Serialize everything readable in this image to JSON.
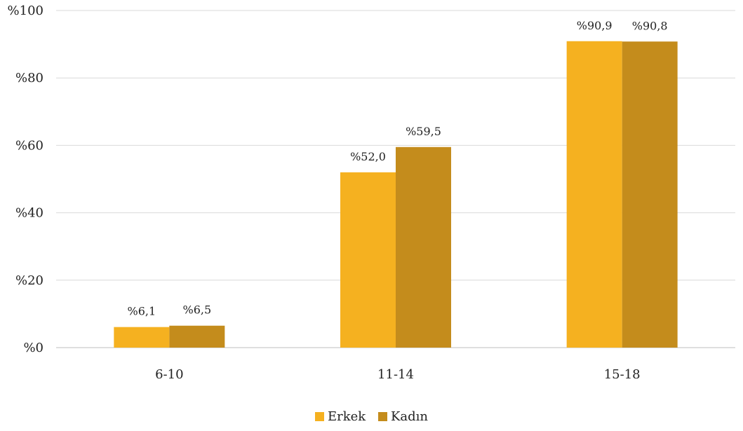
{
  "chart_data": {
    "type": "bar",
    "categories": [
      "6-10",
      "11-14",
      "15-18"
    ],
    "series": [
      {
        "name": "Erkek",
        "color": "#F5B120",
        "values": [
          6.1,
          52.0,
          90.9
        ],
        "labels": [
          "%6,1",
          "%52,0",
          "%90,9"
        ]
      },
      {
        "name": "Kadın",
        "color": "#C48C1C",
        "values": [
          6.5,
          59.5,
          90.8
        ],
        "labels": [
          "%6,5",
          "%59,5",
          "%90,8"
        ]
      }
    ],
    "yticks": [
      {
        "value": 0,
        "label": "%0"
      },
      {
        "value": 20,
        "label": "%20"
      },
      {
        "value": 40,
        "label": "%40"
      },
      {
        "value": 60,
        "label": "%60"
      },
      {
        "value": 80,
        "label": "%80"
      },
      {
        "value": 100,
        "label": "%100"
      }
    ],
    "ylim": [
      0,
      100
    ],
    "grid": true,
    "legend_position": "bottom"
  }
}
